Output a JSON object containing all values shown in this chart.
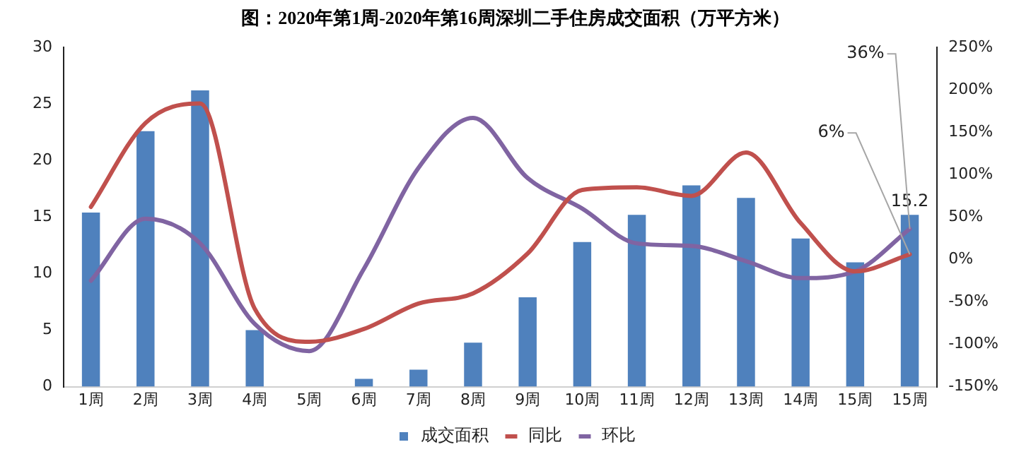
{
  "chart_data": {
    "type": "bar",
    "title": "图：2020年第1周-2020年第16周深圳二手住房成交面积（万平方米）",
    "categories": [
      "1周",
      "2周",
      "3周",
      "4周",
      "5周",
      "6周",
      "7周",
      "8周",
      "9周",
      "10周",
      "11周",
      "12周",
      "13周",
      "14周",
      "15周",
      "15周"
    ],
    "series": [
      {
        "name": "成交面积",
        "color": "#4f81bd",
        "values": [
          15.4,
          22.6,
          26.2,
          5.0,
          0,
          0.7,
          1.5,
          3.9,
          7.9,
          12.8,
          15.2,
          17.8,
          16.7,
          13.1,
          11.0,
          15.2
        ],
        "value_labels": [
          null,
          null,
          null,
          null,
          null,
          null,
          null,
          null,
          null,
          null,
          null,
          null,
          null,
          null,
          null,
          "15.2"
        ]
      },
      {
        "name": "同比",
        "type": "line",
        "axis": "y2",
        "color": "#c0504d",
        "values": [
          62,
          161,
          184,
          -58,
          -97,
          -82,
          -52,
          -40,
          7,
          82,
          85,
          75,
          126,
          43,
          -14,
          6
        ],
        "value_labels": [
          null,
          null,
          null,
          null,
          null,
          null,
          null,
          null,
          null,
          null,
          null,
          null,
          null,
          null,
          null,
          "6%"
        ]
      },
      {
        "name": "环比",
        "type": "line",
        "axis": "y2",
        "color": "#8064a2",
        "values": [
          -25,
          48,
          19,
          -76,
          -108,
          -11,
          108,
          167,
          96,
          60,
          19,
          16,
          -2,
          -22,
          -14,
          36
        ],
        "value_labels": [
          null,
          null,
          null,
          null,
          null,
          null,
          null,
          null,
          null,
          null,
          null,
          null,
          null,
          null,
          null,
          "36%"
        ]
      }
    ],
    "ylim": [
      0,
      30
    ],
    "yticks": [
      0,
      5,
      10,
      15,
      20,
      25,
      30
    ],
    "y2lim": [
      -150,
      250
    ],
    "y2ticks": [
      {
        "value": -150,
        "label": "-150%"
      },
      {
        "value": -100,
        "label": "-100%"
      },
      {
        "value": -50,
        "label": "-50%"
      },
      {
        "value": 0,
        "label": "0%"
      },
      {
        "value": 50,
        "label": "50%"
      },
      {
        "value": 100,
        "label": "100%"
      },
      {
        "value": 150,
        "label": "150%"
      },
      {
        "value": 200,
        "label": "200%"
      },
      {
        "value": 250,
        "label": "250%"
      }
    ],
    "grid": false,
    "legend": "bottom",
    "marker": "none",
    "line_style": "solid"
  }
}
